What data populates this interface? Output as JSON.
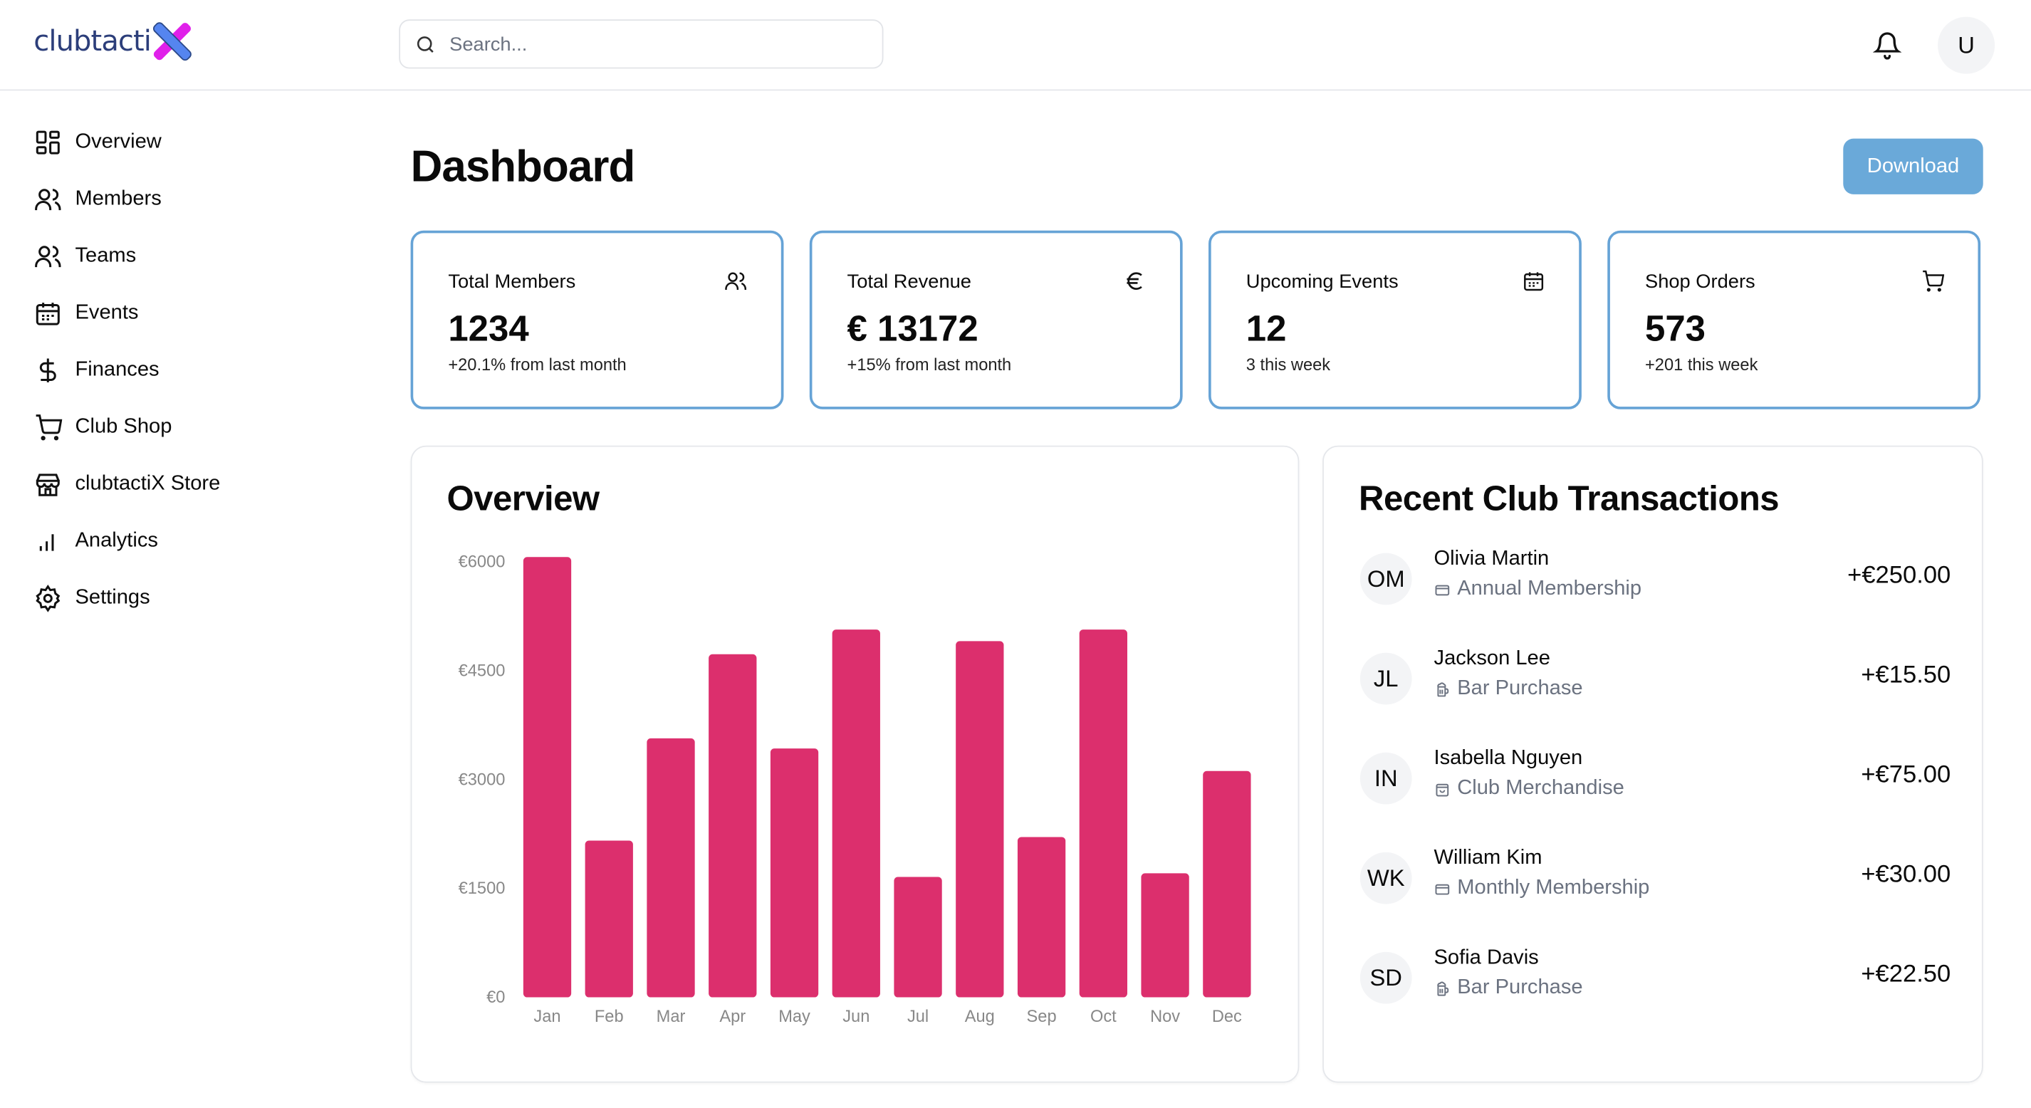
{
  "brand": {
    "name": "clubtacti"
  },
  "header": {
    "search_placeholder": "Search...",
    "user_initial": "U"
  },
  "sidebar": {
    "items": [
      {
        "label": "Overview",
        "icon": "layout-grid-icon"
      },
      {
        "label": "Members",
        "icon": "users-icon"
      },
      {
        "label": "Teams",
        "icon": "users-icon"
      },
      {
        "label": "Events",
        "icon": "calendar-icon"
      },
      {
        "label": "Finances",
        "icon": "dollar-icon"
      },
      {
        "label": "Club Shop",
        "icon": "cart-icon"
      },
      {
        "label": "clubtactiX Store",
        "icon": "store-icon"
      },
      {
        "label": "Analytics",
        "icon": "bar-chart-icon"
      },
      {
        "label": "Settings",
        "icon": "gear-icon"
      }
    ]
  },
  "page": {
    "title": "Dashboard",
    "download_label": "Download"
  },
  "stats": [
    {
      "label": "Total Members",
      "value": "1234",
      "sub": "+20.1% from last month",
      "icon": "users-icon"
    },
    {
      "label": "Total Revenue",
      "value": "€ 13172",
      "sub": "+15% from last month",
      "icon": "euro-icon"
    },
    {
      "label": "Upcoming Events",
      "value": "12",
      "sub": "3 this week",
      "icon": "calendar-icon"
    },
    {
      "label": "Shop Orders",
      "value": "573",
      "sub": "+201 this week",
      "icon": "cart-icon"
    }
  ],
  "overview": {
    "title": "Overview"
  },
  "chart_data": {
    "type": "bar",
    "title": "Overview",
    "categories": [
      "Jan",
      "Feb",
      "Mar",
      "Apr",
      "May",
      "Jun",
      "Jul",
      "Aug",
      "Sep",
      "Oct",
      "Nov",
      "Dec"
    ],
    "values": [
      6070,
      2160,
      3570,
      4730,
      3430,
      5070,
      1660,
      4910,
      2210,
      5070,
      1710,
      3120
    ],
    "yticks": [
      "€0",
      "€1500",
      "€3000",
      "€4500",
      "€6000"
    ],
    "ylim": [
      0,
      6000
    ],
    "color": "#dc2f6d",
    "grid": false
  },
  "transactions": {
    "title": "Recent Club Transactions",
    "items": [
      {
        "initials": "OM",
        "name": "Olivia Martin",
        "desc": "Annual Membership",
        "icon": "credit-card-icon",
        "amount": "+€250.00"
      },
      {
        "initials": "JL",
        "name": "Jackson Lee",
        "desc": "Bar Purchase",
        "icon": "beer-icon",
        "amount": "+€15.50"
      },
      {
        "initials": "IN",
        "name": "Isabella Nguyen",
        "desc": "Club Merchandise",
        "icon": "shopping-bag-icon",
        "amount": "+€75.00"
      },
      {
        "initials": "WK",
        "name": "William Kim",
        "desc": "Monthly Membership",
        "icon": "credit-card-icon",
        "amount": "+€30.00"
      },
      {
        "initials": "SD",
        "name": "Sofia Davis",
        "desc": "Bar Purchase",
        "icon": "beer-icon",
        "amount": "+€22.50"
      }
    ]
  }
}
